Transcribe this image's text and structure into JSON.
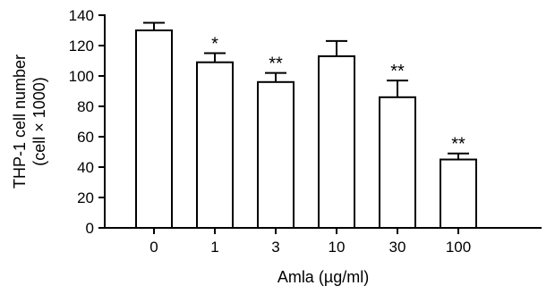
{
  "chart_data": {
    "type": "bar",
    "categories": [
      "0",
      "1",
      "3",
      "10",
      "30",
      "100"
    ],
    "values": [
      130,
      109,
      96,
      113,
      86,
      45
    ],
    "errors": [
      5,
      6,
      6,
      10,
      11,
      4
    ],
    "annotations": [
      "",
      "*",
      "**",
      "",
      "**",
      "**"
    ],
    "xlabel": "Amla (µg/ml)",
    "ylabel": [
      "THP-1 cell number",
      "(cell × 1000)"
    ],
    "ylim": [
      0,
      140
    ],
    "yticks": [
      0,
      20,
      40,
      60,
      80,
      100,
      120,
      140
    ],
    "grid": false,
    "bar_fill": "#ffffff",
    "bar_stroke": "#000000"
  }
}
